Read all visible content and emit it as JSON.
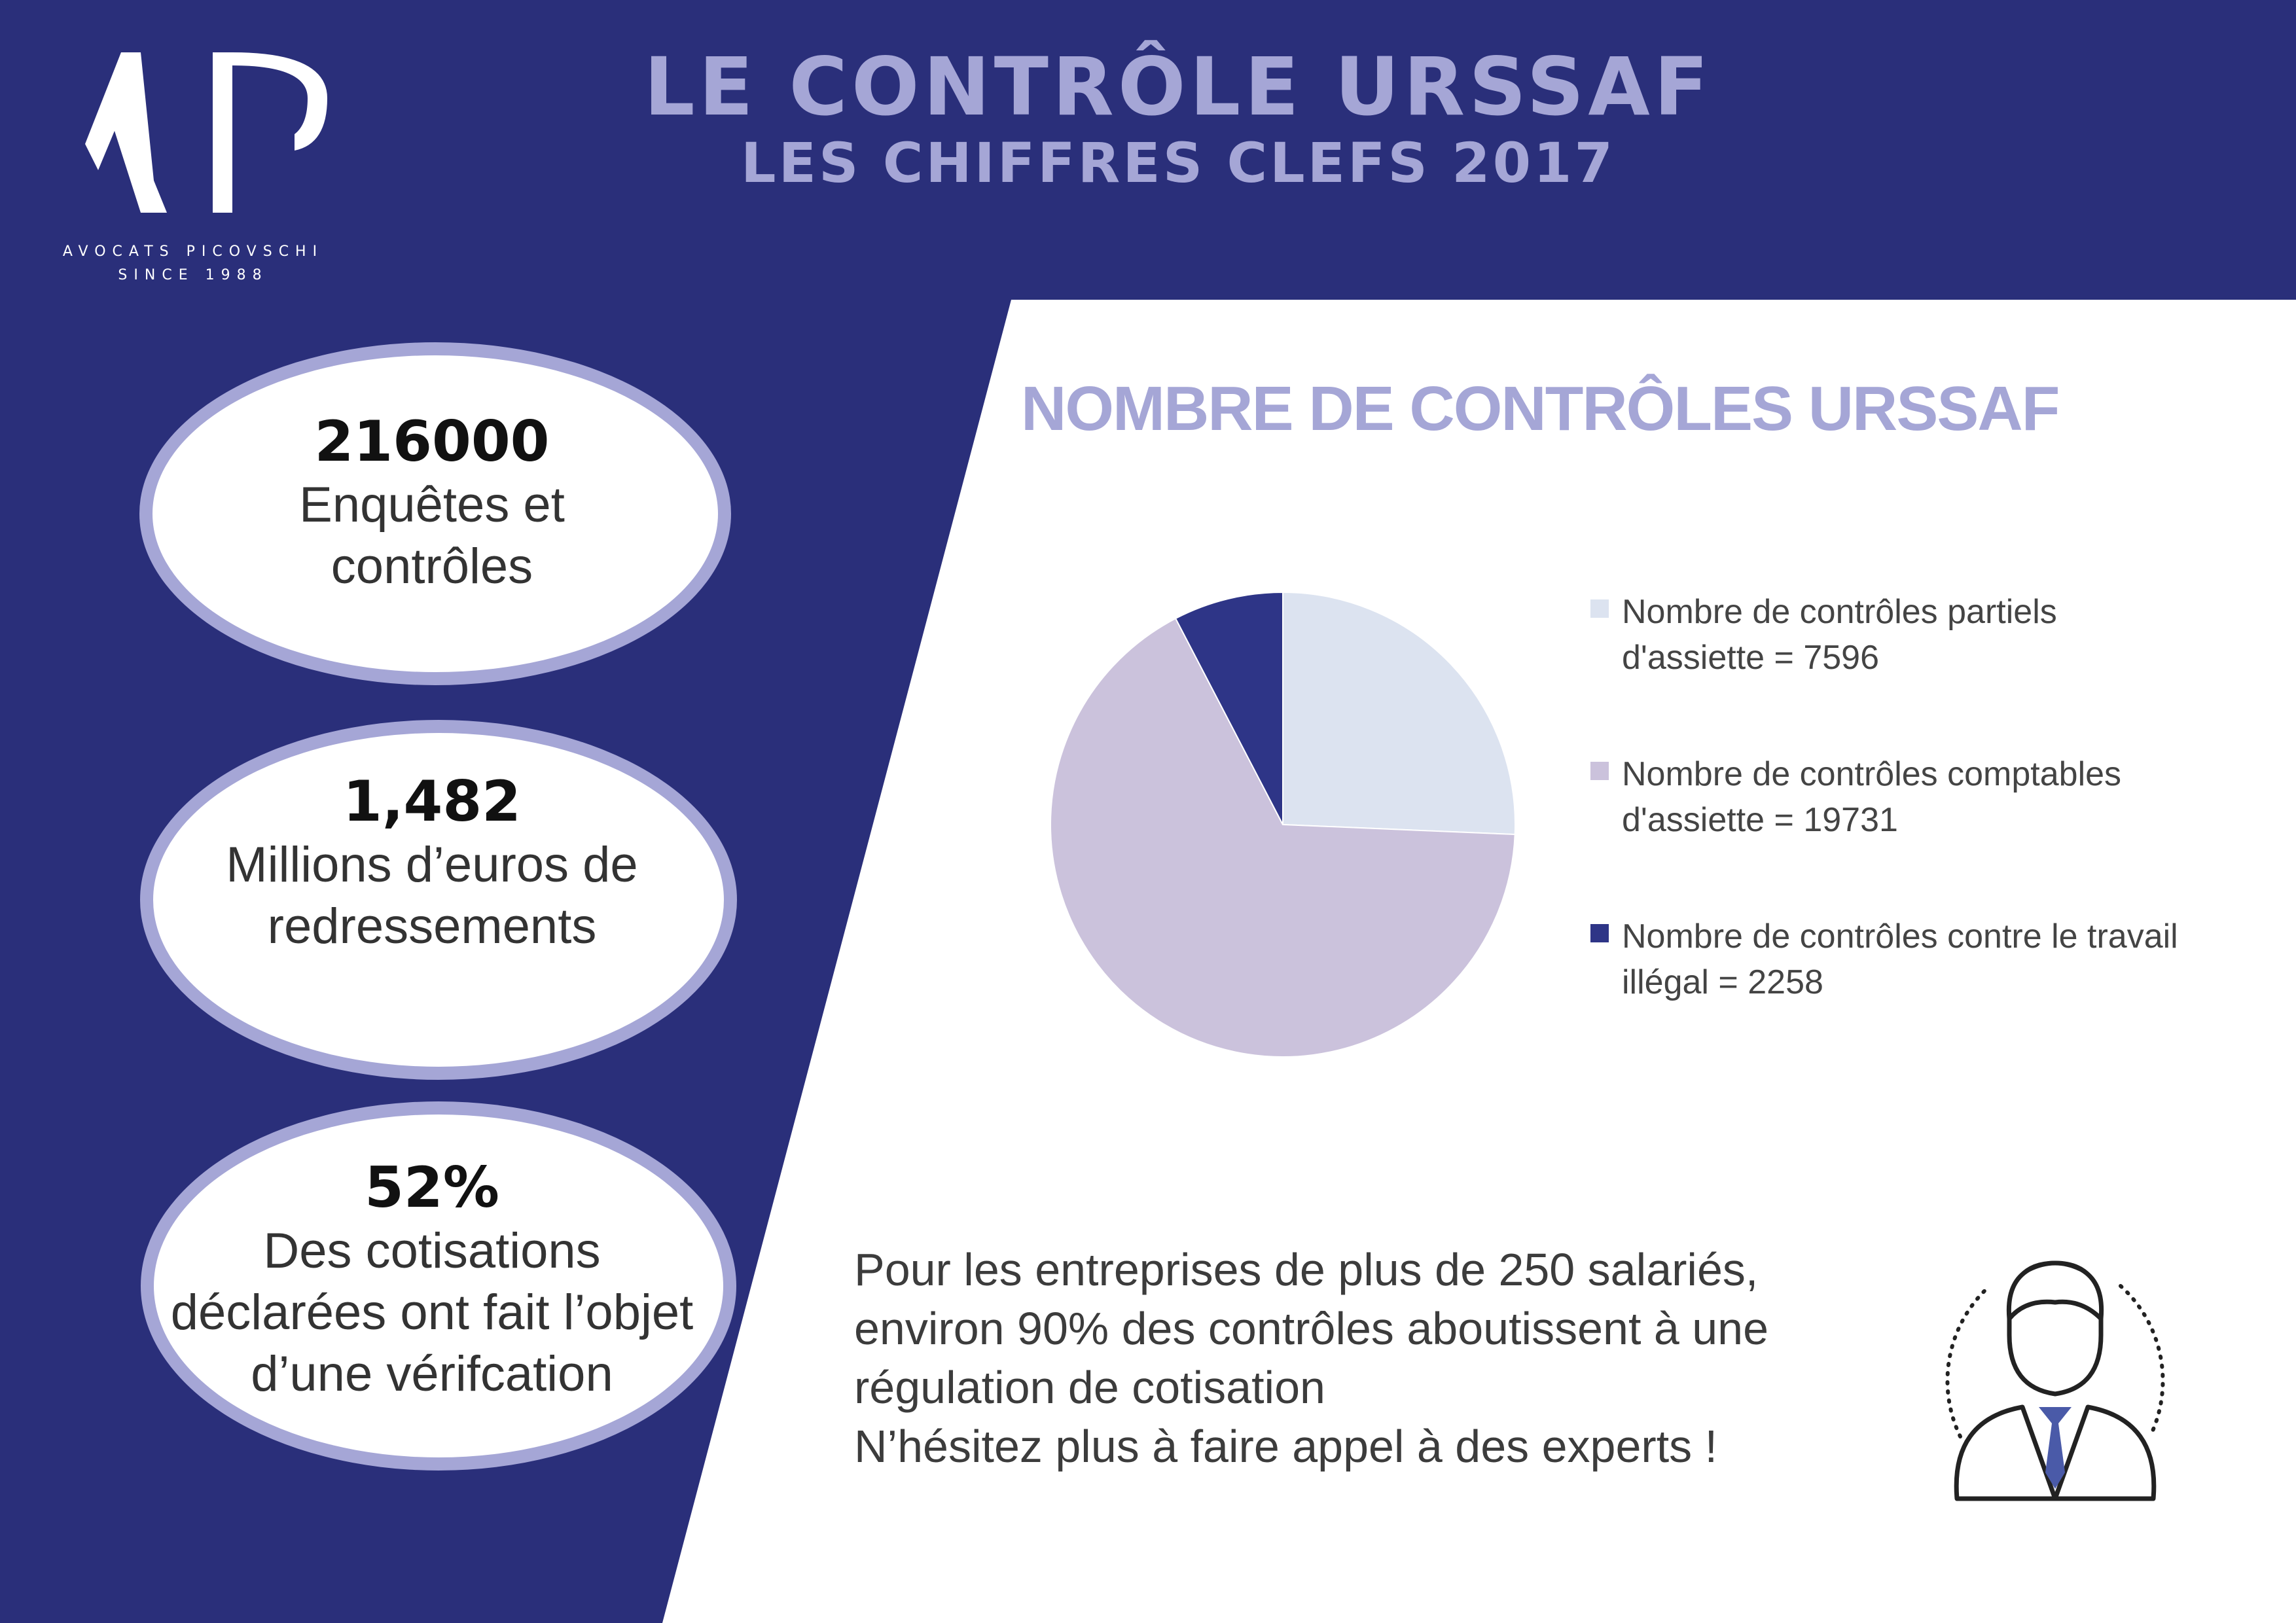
{
  "brand": {
    "name_line1": "AVOCATS PICOVSCHI",
    "name_line2": "SINCE 1988",
    "logo_text": "AP"
  },
  "header": {
    "title": "LE CONTRÔLE URSSAF",
    "subtitle": "LES CHIFFRES CLEFS 2017"
  },
  "stats": [
    {
      "value": "216000",
      "label_lines": [
        "Enquêtes et",
        "contrôles"
      ]
    },
    {
      "value": "1,482",
      "label_lines": [
        "Millions d’euros de",
        "redressements"
      ]
    },
    {
      "value": "52%",
      "label_lines": [
        "Des cotisations",
        "déclarées ont fait l’objet",
        "d’une vérifcation"
      ]
    }
  ],
  "colors": {
    "background": "#2a2f7a",
    "accent": "#a5a6d6",
    "slice_partiels": "#dce3f0",
    "slice_comptables": "#cbc2dc",
    "slice_travail": "#2e3587"
  },
  "chart_data": {
    "type": "pie",
    "title": "NOMBRE DE CONTRÔLES URSSAF",
    "slices": [
      {
        "label": "Nombre de contrôles partiels d'assiette = 7596",
        "value": 7596,
        "color": "#dce3f0",
        "legend_lines": [
          "Nombre de contrôles partiels",
          "d'assiette = 7596"
        ]
      },
      {
        "label": "Nombre de contrôles comptables d'assiette = 19731",
        "value": 19731,
        "color": "#cbc2dc",
        "legend_lines": [
          "Nombre de contrôles comptables",
          "d'assiette = 19731"
        ]
      },
      {
        "label": "Nombre de contrôles  contre le travail illégal = 2258",
        "value": 2258,
        "color": "#2e3587",
        "legend_lines": [
          "Nombre de contrôles  contre le travail",
          "illégal = 2258"
        ]
      }
    ],
    "legend_position": "right"
  },
  "message": {
    "lines": [
      "Pour les entreprises de plus de 250 salariés,",
      "environ 90% des contrôles aboutissent à une",
      "régulation de cotisation",
      "N’hésitez plus à faire appel à des experts !"
    ]
  },
  "icons": {
    "person": "business-person-icon"
  }
}
